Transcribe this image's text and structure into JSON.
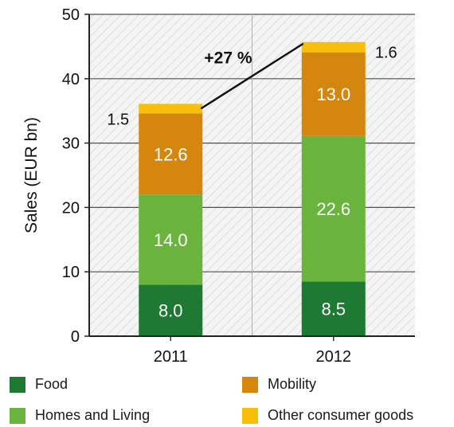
{
  "chart_data": {
    "type": "bar",
    "stacked": true,
    "categories": [
      "2011",
      "2012"
    ],
    "series": [
      {
        "name": "Food",
        "values": [
          8.0,
          8.5
        ],
        "color": "#1e7a32"
      },
      {
        "name": "Homes and Living",
        "values": [
          14.0,
          22.6
        ],
        "color": "#6ab43e"
      },
      {
        "name": "Mobility",
        "values": [
          12.6,
          13.0
        ],
        "color": "#d4860f"
      },
      {
        "name": "Other consumer goods",
        "values": [
          1.5,
          1.6
        ],
        "color": "#f7bf0b"
      }
    ],
    "data_labels": {
      "Food": [
        "8.0",
        "8.5"
      ],
      "Homes and Living": [
        "14.0",
        "22.6"
      ],
      "Mobility": [
        "12.6",
        "13.0"
      ],
      "Other consumer goods": [
        "1.5",
        "1.6"
      ]
    },
    "annotation": "+27 %",
    "ylabel": "Sales (EUR bn)",
    "xlabel": "",
    "ylim": [
      0,
      50
    ],
    "yticks": [
      0,
      10,
      20,
      30,
      40,
      50
    ],
    "grid": true,
    "legend_position": "bottom"
  },
  "legend": {
    "items": [
      {
        "label": "Food",
        "color": "#1e7a32"
      },
      {
        "label": "Mobility",
        "color": "#d4860f"
      },
      {
        "label": "Homes and Living",
        "color": "#6ab43e"
      },
      {
        "label": "Other consumer goods",
        "color": "#f7bf0b"
      }
    ]
  }
}
